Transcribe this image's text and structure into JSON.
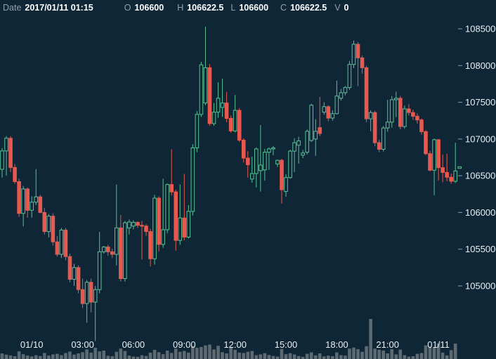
{
  "header": {
    "date_label": "Date",
    "date_value": "2017/01/11 01:15",
    "open_label": "O",
    "open_value": "106600",
    "high_label": "H",
    "high_value": "106622.5",
    "low_label": "L",
    "low_value": "106600",
    "close_label": "C",
    "close_value": "106622.5",
    "volume_label": "V",
    "volume_value": "0"
  },
  "colors": {
    "background": "#0f2636",
    "bull": "#57c295",
    "bear": "#e8584e",
    "volume_bar": "#5e6a72",
    "axis_text": "#e9eff2",
    "tick_mark": "#8c9aa5",
    "header_label": "#8fa1ad",
    "header_value": "#ffffff"
  },
  "chart_data": {
    "type": "candlestick",
    "interval": "15m",
    "grid": false,
    "legend": false,
    "y_axis": {
      "side": "right",
      "ticks": [
        108500,
        108000,
        107500,
        107000,
        106500,
        106000,
        105500,
        105000
      ],
      "range": [
        104200,
        108900
      ]
    },
    "x_axis": {
      "ticks": [
        {
          "index": 7,
          "label": "01/10"
        },
        {
          "index": 19,
          "label": "03:00"
        },
        {
          "index": 31,
          "label": "06:00"
        },
        {
          "index": 43,
          "label": "09:00"
        },
        {
          "index": 55,
          "label": "12:00"
        },
        {
          "index": 67,
          "label": "15:00"
        },
        {
          "index": 79,
          "label": "18:00"
        },
        {
          "index": 91,
          "label": "21:00"
        },
        {
          "index": 103,
          "label": "01/11"
        }
      ]
    },
    "volume_axis": {
      "max": 1000
    },
    "columns": [
      "time",
      "open",
      "high",
      "low",
      "close",
      "volume"
    ],
    "candles": [
      [
        "01/09 22:15",
        106587.5,
        106875,
        106475,
        106837.5,
        140
      ],
      [
        "01/09 22:30",
        106837.5,
        107040,
        106500,
        107010,
        110
      ],
      [
        "01/09 22:45",
        107010,
        107040,
        106550,
        106612.5,
        90
      ],
      [
        "01/09 23:00",
        106612.5,
        106660,
        106390,
        106420,
        70
      ],
      [
        "01/09 23:15",
        106420,
        106460,
        105940,
        105987.5,
        190
      ],
      [
        "01/09 23:30",
        105987.5,
        106360,
        105810,
        106320,
        120
      ],
      [
        "01/09 23:45",
        106320,
        106340,
        105930,
        106030,
        85
      ],
      [
        "01/10 00:00",
        106030,
        106220,
        105930,
        106140,
        65
      ],
      [
        "01/10 00:15",
        106140,
        106590,
        106100,
        106212.5,
        95
      ],
      [
        "01/10 00:30",
        106212.5,
        106240,
        105990,
        106000,
        75
      ],
      [
        "01/10 00:45",
        106000,
        106060,
        105700,
        105740,
        150
      ],
      [
        "01/10 01:00",
        105740,
        105980,
        105660,
        105950,
        85
      ],
      [
        "01/10 01:15",
        105950,
        105990,
        105550,
        105600,
        115
      ],
      [
        "01/10 01:30",
        105600,
        105680,
        105400,
        105430,
        130
      ],
      [
        "01/10 01:45",
        105430,
        105790,
        105380,
        105760,
        95
      ],
      [
        "01/10 02:00",
        105760,
        105790,
        105350,
        105400,
        150
      ],
      [
        "01/10 02:15",
        105400,
        105440,
        105050,
        105090,
        185
      ],
      [
        "01/10 02:30",
        105090,
        105300,
        105000,
        105250,
        110
      ],
      [
        "01/10 02:45",
        105250,
        105280,
        104900,
        104950,
        140
      ],
      [
        "01/10 03:00",
        104950,
        105100,
        104700,
        104760,
        170
      ],
      [
        "01/10 03:15",
        104760,
        105080,
        104500,
        105050,
        240
      ],
      [
        "01/10 03:30",
        105050,
        105100,
        104640,
        104780,
        160
      ],
      [
        "01/10 03:45",
        104780,
        105000,
        104250,
        104950,
        280
      ],
      [
        "01/10 04:00",
        104950,
        105735,
        104900,
        105465,
        190
      ],
      [
        "01/10 04:15",
        105465,
        105545,
        105440,
        105530,
        210
      ],
      [
        "01/10 04:30",
        105530,
        105560,
        105410,
        105465,
        80
      ],
      [
        "01/10 04:45",
        105465,
        105505,
        105380,
        105430,
        70
      ],
      [
        "01/10 05:00",
        105430,
        106380,
        105280,
        105790,
        180
      ],
      [
        "01/10 05:15",
        105790,
        105965,
        105060,
        105100,
        260
      ],
      [
        "01/10 05:30",
        105100,
        105885,
        105060,
        105860,
        200
      ],
      [
        "01/10 05:45",
        105790,
        105905,
        105700,
        105870,
        85
      ],
      [
        "01/10 06:00",
        105815,
        105895,
        105770,
        105865,
        60
      ],
      [
        "01/10 06:15",
        105865,
        105880,
        105790,
        105825,
        55
      ],
      [
        "01/10 06:30",
        105825,
        105885,
        105360,
        105815,
        95
      ],
      [
        "01/10 06:45",
        105815,
        105840,
        105680,
        105740,
        75
      ],
      [
        "01/10 07:00",
        105740,
        105780,
        105265,
        105370,
        160
      ],
      [
        "01/10 07:15",
        105370,
        106240,
        105290,
        106195,
        230
      ],
      [
        "01/10 07:30",
        106195,
        106220,
        105470,
        105565,
        170
      ],
      [
        "01/10 07:45",
        105565,
        106460,
        105520,
        105765,
        120
      ],
      [
        "01/10 08:00",
        105765,
        106395,
        105720,
        106380,
        210
      ],
      [
        "01/10 08:15",
        106380,
        106860,
        106230,
        106280,
        150
      ],
      [
        "01/10 08:30",
        106280,
        106310,
        105480,
        105620,
        260
      ],
      [
        "01/10 08:45",
        105620,
        106380,
        105560,
        105925,
        180
      ],
      [
        "01/10 09:00",
        105925,
        106525,
        105620,
        105665,
        200
      ],
      [
        "01/10 09:15",
        105665,
        106100,
        105645,
        106015,
        160
      ],
      [
        "01/10 09:30",
        106015,
        106930,
        105960,
        106880,
        320
      ],
      [
        "01/10 09:45",
        106880,
        107380,
        106820,
        107335,
        280
      ],
      [
        "01/10 10:00",
        107335,
        108050,
        107300,
        108010,
        300
      ],
      [
        "01/10 10:15",
        107490,
        108530,
        107460,
        107970,
        340
      ],
      [
        "01/10 10:30",
        107970,
        108020,
        107180,
        107210,
        360
      ],
      [
        "01/10 10:45",
        107210,
        107490,
        107180,
        107365,
        240
      ],
      [
        "01/10 11:00",
        107365,
        107770,
        107290,
        107555,
        330
      ],
      [
        "01/10 11:15",
        107430,
        107820,
        107300,
        107490,
        170
      ],
      [
        "01/10 11:30",
        107490,
        107640,
        107230,
        107280,
        140
      ],
      [
        "01/10 11:45",
        107280,
        107320,
        107085,
        107110,
        300
      ],
      [
        "01/10 12:00",
        107110,
        107600,
        107090,
        107390,
        230
      ],
      [
        "01/10 12:15",
        107390,
        107420,
        106960,
        106985,
        160
      ],
      [
        "01/10 12:30",
        106985,
        107010,
        106680,
        106740,
        150
      ],
      [
        "01/10 12:45",
        106740,
        106835,
        106475,
        106650,
        180
      ],
      [
        "01/10 13:00",
        106455,
        106760,
        106405,
        106530,
        200
      ],
      [
        "01/10 13:15",
        106530,
        106885,
        106340,
        106865,
        95
      ],
      [
        "01/10 13:30",
        106570,
        107190,
        106285,
        106645,
        115
      ],
      [
        "01/10 13:45",
        106580,
        106865,
        106435,
        106820,
        145
      ],
      [
        "01/10 14:00",
        106820,
        106885,
        106580,
        106865,
        100
      ],
      [
        "01/10 14:15",
        106865,
        106905,
        106780,
        106880,
        75
      ],
      [
        "01/10 14:30",
        106660,
        106720,
        106620,
        106710,
        60
      ],
      [
        "01/10 14:45",
        106710,
        106730,
        106120,
        106310,
        250
      ],
      [
        "01/10 15:00",
        106285,
        106520,
        106215,
        106475,
        120
      ],
      [
        "01/10 15:15",
        106475,
        106855,
        106460,
        106835,
        145
      ],
      [
        "01/10 15:30",
        106835,
        107010,
        106550,
        106950,
        115
      ],
      [
        "01/10 15:45",
        106915,
        107030,
        106665,
        106975,
        75
      ],
      [
        "01/10 16:00",
        106780,
        106850,
        106740,
        106810,
        55
      ],
      [
        "01/10 16:15",
        106820,
        107130,
        106790,
        107105,
        130
      ],
      [
        "01/10 16:30",
        106980,
        107480,
        106960,
        107460,
        165
      ],
      [
        "01/10 16:45",
        107000,
        107270,
        106770,
        107105,
        90
      ],
      [
        "01/10 17:00",
        107155,
        107575,
        107040,
        107075,
        140
      ],
      [
        "01/10 17:15",
        107365,
        107500,
        107330,
        107440,
        65
      ],
      [
        "01/10 17:30",
        107440,
        107460,
        107240,
        107285,
        85
      ],
      [
        "01/10 17:45",
        107285,
        107390,
        107250,
        107345,
        70
      ],
      [
        "01/10 18:00",
        107345,
        107795,
        107335,
        107585,
        165
      ],
      [
        "01/10 18:15",
        107555,
        107680,
        107525,
        107630,
        95
      ],
      [
        "01/10 18:30",
        107630,
        107720,
        107595,
        107700,
        85
      ],
      [
        "01/10 18:45",
        107700,
        108060,
        107670,
        108015,
        260
      ],
      [
        "01/10 19:00",
        108015,
        108340,
        107965,
        108290,
        285
      ],
      [
        "01/10 19:15",
        108290,
        108320,
        107720,
        108105,
        245
      ],
      [
        "01/10 19:30",
        108105,
        108135,
        107890,
        107970,
        180
      ],
      [
        "01/10 19:45",
        107970,
        107995,
        107230,
        107275,
        320
      ],
      [
        "01/10 20:00",
        107275,
        107390,
        107105,
        107360,
        1000
      ],
      [
        "01/10 20:15",
        107360,
        107385,
        106900,
        106950,
        260
      ],
      [
        "01/10 20:30",
        106950,
        106990,
        106820,
        106860,
        230
      ],
      [
        "01/10 20:45",
        106860,
        107175,
        106830,
        107150,
        210
      ],
      [
        "01/10 21:00",
        107150,
        107535,
        107100,
        107230,
        140
      ],
      [
        "01/10 21:15",
        107230,
        107585,
        107155,
        107535,
        245
      ],
      [
        "01/10 21:30",
        107535,
        107645,
        107300,
        107555,
        115
      ],
      [
        "01/10 21:45",
        107555,
        107585,
        107130,
        107170,
        235
      ],
      [
        "01/10 22:00",
        107170,
        107455,
        107140,
        107410,
        95
      ],
      [
        "01/10 22:15",
        107410,
        107475,
        107320,
        107360,
        60
      ],
      [
        "01/10 22:30",
        107360,
        107400,
        107260,
        107310,
        70
      ],
      [
        "01/10 22:45",
        107310,
        107350,
        107210,
        107260,
        130
      ],
      [
        "01/10 23:00",
        107260,
        107280,
        107060,
        107100,
        150
      ],
      [
        "01/10 23:15",
        107100,
        107120,
        106780,
        106800,
        340
      ],
      [
        "01/10 23:30",
        106800,
        106840,
        106560,
        106575,
        310
      ],
      [
        "01/10 23:45",
        106575,
        107005,
        106235,
        106990,
        280
      ],
      [
        "01/11 00:00",
        106990,
        107000,
        106435,
        106610,
        390
      ],
      [
        "01/11 00:15",
        106610,
        106790,
        106410,
        106545,
        160
      ],
      [
        "01/11 00:30",
        106545,
        106800,
        106425,
        106480,
        90
      ],
      [
        "01/11 00:45",
        106480,
        106530,
        106390,
        106425,
        220
      ],
      [
        "01/11 01:00",
        106425,
        106950,
        106400,
        106565,
        385
      ],
      [
        "01/11 01:15",
        106600,
        106622.5,
        106600,
        106622.5,
        0
      ]
    ]
  }
}
